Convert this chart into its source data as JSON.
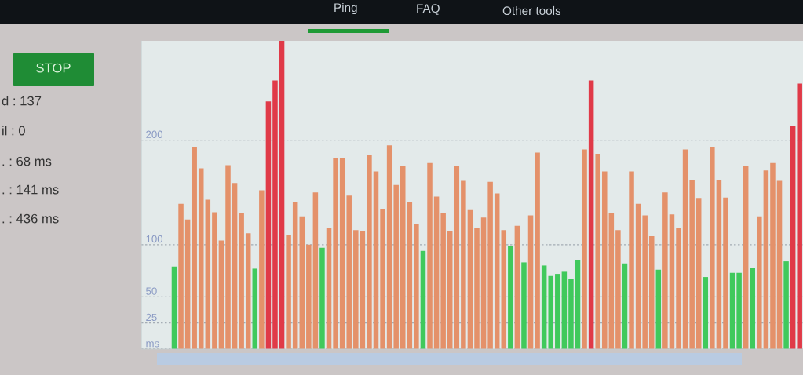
{
  "chart_data": {
    "type": "bar",
    "categories": [
      null,
      null,
      null,
      null,
      null,
      null,
      null,
      null,
      null,
      null,
      null,
      null,
      null,
      null,
      null,
      null,
      null,
      null,
      null,
      null,
      null,
      null,
      null,
      null,
      null,
      null,
      null,
      null,
      null,
      null,
      null,
      null,
      null,
      null,
      null,
      null,
      null,
      null,
      null,
      null,
      null,
      null,
      null,
      null,
      null,
      null,
      null,
      null,
      null,
      null,
      null,
      null,
      null,
      null,
      null,
      null,
      null,
      null,
      null,
      null,
      null,
      null,
      null,
      null,
      null,
      null,
      null,
      null,
      null,
      null,
      null,
      null,
      null,
      null,
      null,
      null,
      null,
      null,
      null,
      null,
      null,
      null,
      null,
      null,
      null,
      null,
      null,
      null,
      null,
      null,
      null,
      null,
      null,
      null
    ],
    "values": [
      79,
      139,
      124,
      193,
      173,
      143,
      131,
      104,
      176,
      159,
      130,
      111,
      77,
      152,
      237,
      257,
      295,
      109,
      141,
      127,
      100,
      150,
      97,
      116,
      183,
      183,
      147,
      114,
      113,
      186,
      170,
      134,
      195,
      157,
      175,
      141,
      120,
      94,
      178,
      146,
      130,
      113,
      175,
      161,
      133,
      116,
      126,
      160,
      149,
      114,
      99,
      118,
      83,
      128,
      188,
      80,
      70,
      72,
      74,
      67,
      85,
      191,
      257,
      187,
      170,
      130,
      114,
      82,
      170,
      139,
      128,
      108,
      76,
      150,
      129,
      116,
      191,
      162,
      144,
      69,
      193,
      162,
      145,
      73,
      73,
      175,
      78,
      127,
      171,
      178,
      161,
      84,
      214,
      254
    ],
    "colors": [
      "#40c95c",
      "#e4916a",
      "#e4916a",
      "#e4916a",
      "#e4916a",
      "#e4916a",
      "#e4916a",
      "#e4916a",
      "#e4916a",
      "#e4916a",
      "#e4916a",
      "#e4916a",
      "#40c95c",
      "#e4916a",
      "#e03a48",
      "#e03a48",
      "#e03a48",
      "#e4916a",
      "#e4916a",
      "#e4916a",
      "#e4916a",
      "#e4916a",
      "#40c95c",
      "#e4916a",
      "#e4916a",
      "#e4916a",
      "#e4916a",
      "#e4916a",
      "#e4916a",
      "#e4916a",
      "#e4916a",
      "#e4916a",
      "#e4916a",
      "#e4916a",
      "#e4916a",
      "#e4916a",
      "#e4916a",
      "#40c95c",
      "#e4916a",
      "#e4916a",
      "#e4916a",
      "#e4916a",
      "#e4916a",
      "#e4916a",
      "#e4916a",
      "#e4916a",
      "#e4916a",
      "#e4916a",
      "#e4916a",
      "#e4916a",
      "#40c95c",
      "#e4916a",
      "#40c95c",
      "#e4916a",
      "#e4916a",
      "#40c95c",
      "#40c95c",
      "#40c95c",
      "#40c95c",
      "#40c95c",
      "#40c95c",
      "#e4916a",
      "#e03a48",
      "#e4916a",
      "#e4916a",
      "#e4916a",
      "#e4916a",
      "#40c95c",
      "#e4916a",
      "#e4916a",
      "#e4916a",
      "#e4916a",
      "#40c95c",
      "#e4916a",
      "#e4916a",
      "#e4916a",
      "#e4916a",
      "#e4916a",
      "#e4916a",
      "#40c95c",
      "#e4916a",
      "#e4916a",
      "#e4916a",
      "#40c95c",
      "#40c95c",
      "#e4916a",
      "#40c95c",
      "#e4916a",
      "#e4916a",
      "#e4916a",
      "#e4916a",
      "#40c95c",
      "#e03a48",
      "#e03a48"
    ],
    "ylim": [
      0,
      295
    ],
    "yticks": [
      {
        "value": 0,
        "label": "ms"
      },
      25,
      50,
      100,
      200
    ],
    "grid": "y",
    "tick_labels": "y",
    "annotations": [
      "Ping",
      "FAQ",
      "Other tools",
      "STOP",
      "d : 137",
      "il : 0",
      ". : 68 ms",
      ". : 141 ms",
      ". : 436 ms"
    ]
  }
}
